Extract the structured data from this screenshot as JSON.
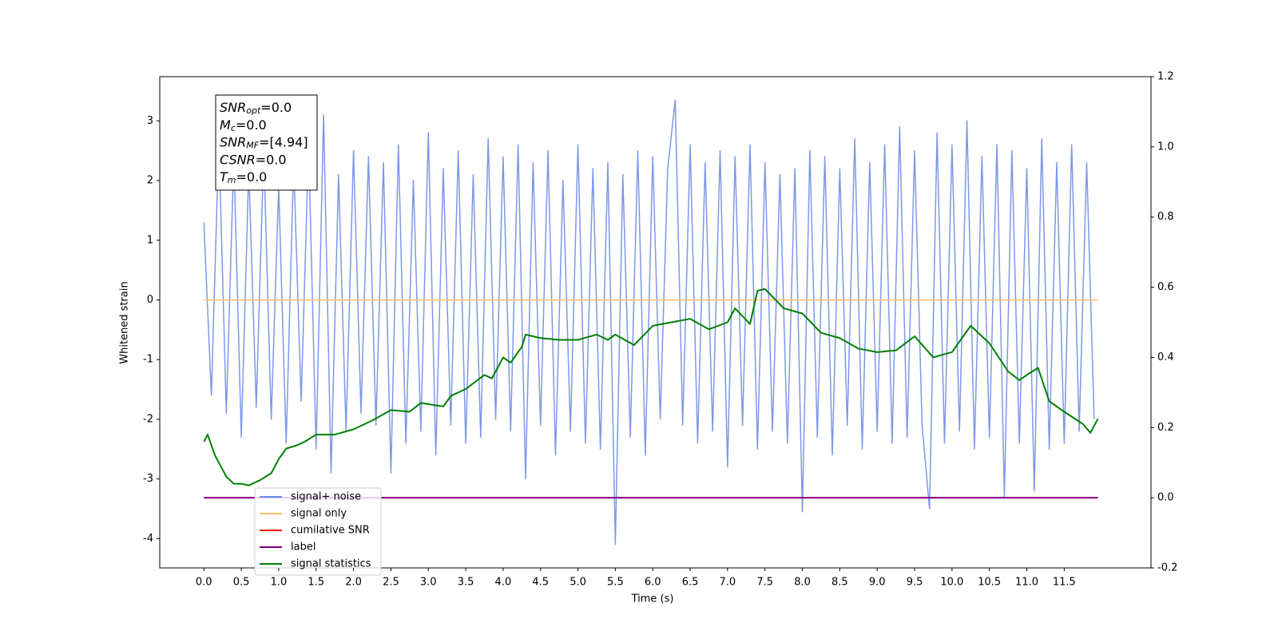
{
  "chart_data": {
    "type": "line",
    "xlabel": "Time (s)",
    "ylabel": "Whitened strain",
    "xlim": [
      -0.59,
      12.66
    ],
    "ylim": [
      -4.49,
      3.74
    ],
    "y2lim": [
      -0.2,
      1.2
    ],
    "xticks": [
      {
        "value": 0,
        "label": "0.0"
      },
      0.5,
      {
        "value": 1,
        "label": "1.0"
      },
      1.5,
      {
        "value": 2,
        "label": "2.0"
      },
      2.5,
      {
        "value": 3,
        "label": "3.0"
      },
      3.5,
      {
        "value": 4,
        "label": "4.0"
      },
      4.5,
      {
        "value": 5,
        "label": "5.0"
      },
      5.5,
      {
        "value": 6,
        "label": "6.0"
      },
      6.5,
      {
        "value": 7,
        "label": "7.0"
      },
      7.5,
      {
        "value": 8,
        "label": "8.0"
      },
      8.5,
      {
        "value": 9,
        "label": "9.0"
      },
      9.5,
      {
        "value": 10,
        "label": "10.0"
      },
      10.5,
      {
        "value": 11,
        "label": "11.0"
      },
      11.5
    ],
    "yticks": [
      -4,
      -3,
      -2,
      -1,
      0,
      1,
      2,
      3
    ],
    "y2ticks": [
      -0.2,
      {
        "value": 0,
        "label": "0.0"
      },
      0.2,
      0.4,
      0.6,
      0.8,
      {
        "value": 1,
        "label": "1.0"
      },
      1.2
    ],
    "legend": "lower left",
    "annotation": [
      {
        "name": "SNR",
        "sub": "opt",
        "value": "=0.0"
      },
      {
        "name": "M",
        "sub": "c",
        "value": "=0.0"
      },
      {
        "name": "SNR",
        "sub": "MF",
        "value": "=[4.94]"
      },
      {
        "name": "CSNR",
        "value": "=0.0"
      },
      {
        "name": "T",
        "sub": "m",
        "value": "=0.0"
      }
    ],
    "series": [
      {
        "name": "signal+ noise",
        "color": "#6f8de6",
        "x": [
          0,
          0.1,
          0.2,
          0.3,
          0.4,
          0.5,
          0.6,
          0.7,
          0.8,
          0.9,
          1,
          1.1,
          1.2,
          1.3,
          1.4,
          1.5,
          1.6,
          1.7,
          1.8,
          1.9,
          2,
          2.1,
          2.2,
          2.3,
          2.4,
          2.5,
          2.6,
          2.7,
          2.8,
          2.9,
          3,
          3.1,
          3.2,
          3.3,
          3.4,
          3.5,
          3.6,
          3.7,
          3.8,
          3.9,
          4,
          4.1,
          4.2,
          4.3,
          4.4,
          4.5,
          4.6,
          4.7,
          4.8,
          4.9,
          5,
          5.1,
          5.2,
          5.3,
          5.4,
          5.5,
          5.6,
          5.7,
          5.8,
          5.9,
          6,
          6.1,
          6.2,
          6.3,
          6.4,
          6.5,
          6.6,
          6.7,
          6.8,
          6.9,
          7,
          7.1,
          7.2,
          7.3,
          7.4,
          7.5,
          7.6,
          7.7,
          7.8,
          7.9,
          8,
          8.1,
          8.2,
          8.3,
          8.4,
          8.5,
          8.6,
          8.7,
          8.8,
          8.9,
          9,
          9.1,
          9.2,
          9.3,
          9.4,
          9.5,
          9.6,
          9.7,
          9.8,
          9.9,
          10,
          10.1,
          10.2,
          10.3,
          10.4,
          10.5,
          10.6,
          10.7,
          10.8,
          10.9,
          11,
          11.1,
          11.2,
          11.3,
          11.4,
          11.5,
          11.6,
          11.7,
          11.8,
          11.9
        ],
        "values": [
          1.3,
          -1.6,
          2.7,
          -1.9,
          2.4,
          -2.3,
          2.2,
          -1.8,
          2.5,
          -2.0,
          1.9,
          -2.4,
          2.3,
          -1.7,
          2.6,
          -2.5,
          3.1,
          -2.9,
          2.1,
          -2.2,
          2.5,
          -1.9,
          2.4,
          -2.1,
          2.3,
          -2.9,
          2.6,
          -2.4,
          2.0,
          -2.2,
          2.8,
          -2.6,
          2.2,
          -2.1,
          2.5,
          -2.4,
          2.1,
          -2.3,
          2.7,
          -2.0,
          2.4,
          -2.2,
          2.6,
          -3.0,
          2.3,
          -2.1,
          2.5,
          -2.6,
          2.0,
          -2.2,
          2.6,
          -2.4,
          2.2,
          -2.5,
          2.3,
          -4.1,
          2.1,
          -2.3,
          2.5,
          -2.6,
          2.4,
          -2.0,
          2.2,
          3.35,
          -2.1,
          2.6,
          -2.4,
          2.3,
          -2.2,
          2.5,
          -2.8,
          2.4,
          -2.1,
          2.6,
          -2.5,
          2.3,
          -2.2,
          2.1,
          -2.4,
          2.2,
          -3.55,
          2.5,
          -2.3,
          2.4,
          -2.6,
          2.2,
          -2.1,
          2.7,
          -2.5,
          2.3,
          -2.2,
          2.6,
          -2.4,
          2.9,
          -2.3,
          2.5,
          -2.1,
          -3.5,
          2.8,
          -2.4,
          2.6,
          -2.2,
          3.0,
          -2.5,
          2.4,
          -2.3,
          2.6,
          -3.3,
          2.5,
          -2.4,
          2.2,
          -3.2,
          2.7,
          -2.5,
          2.3,
          -2.4,
          2.6,
          -2.2,
          2.3,
          -2.0
        ]
      },
      {
        "name": "signal only",
        "color": "#ffbf66",
        "x": [
          0,
          11.95
        ],
        "values": [
          0,
          0
        ]
      },
      {
        "name": "cumilative SNR",
        "color": "#ff0000"
      },
      {
        "name": "label",
        "color": "#800080",
        "axis": "y2",
        "x": [
          0,
          11.95
        ],
        "values": [
          0,
          0
        ]
      },
      {
        "name": "signal statistics",
        "color": "#008000",
        "axis": "y2",
        "x": [
          0,
          0.05,
          0.15,
          0.3,
          0.4,
          0.5,
          0.6,
          0.75,
          0.9,
          1,
          1.1,
          1.25,
          1.35,
          1.5,
          1.75,
          2,
          2.25,
          2.5,
          2.75,
          2.9,
          3.2,
          3.3,
          3.5,
          3.75,
          3.85,
          4,
          4.1,
          4.25,
          4.3,
          4.5,
          4.75,
          5,
          5.25,
          5.4,
          5.5,
          5.75,
          6,
          6.25,
          6.5,
          6.75,
          7,
          7.1,
          7.3,
          7.4,
          7.5,
          7.75,
          8,
          8.25,
          8.5,
          8.75,
          9,
          9.25,
          9.5,
          9.75,
          10,
          10.25,
          10.5,
          10.75,
          10.9,
          11,
          11.15,
          11.3,
          11.5,
          11.75,
          11.85,
          11.95
        ],
        "values": [
          0.16,
          0.18,
          0.12,
          0.06,
          0.04,
          0.04,
          0.035,
          0.05,
          0.07,
          0.11,
          0.14,
          0.15,
          0.16,
          0.18,
          0.18,
          0.195,
          0.22,
          0.25,
          0.245,
          0.27,
          0.26,
          0.29,
          0.31,
          0.35,
          0.34,
          0.4,
          0.385,
          0.43,
          0.465,
          0.455,
          0.45,
          0.45,
          0.465,
          0.45,
          0.465,
          0.435,
          0.49,
          0.5,
          0.51,
          0.48,
          0.5,
          0.54,
          0.495,
          0.59,
          0.595,
          0.54,
          0.525,
          0.47,
          0.455,
          0.425,
          0.415,
          0.42,
          0.46,
          0.4,
          0.415,
          0.49,
          0.44,
          0.36,
          0.335,
          0.35,
          0.37,
          0.275,
          0.245,
          0.21,
          0.185,
          0.225
        ]
      }
    ]
  }
}
